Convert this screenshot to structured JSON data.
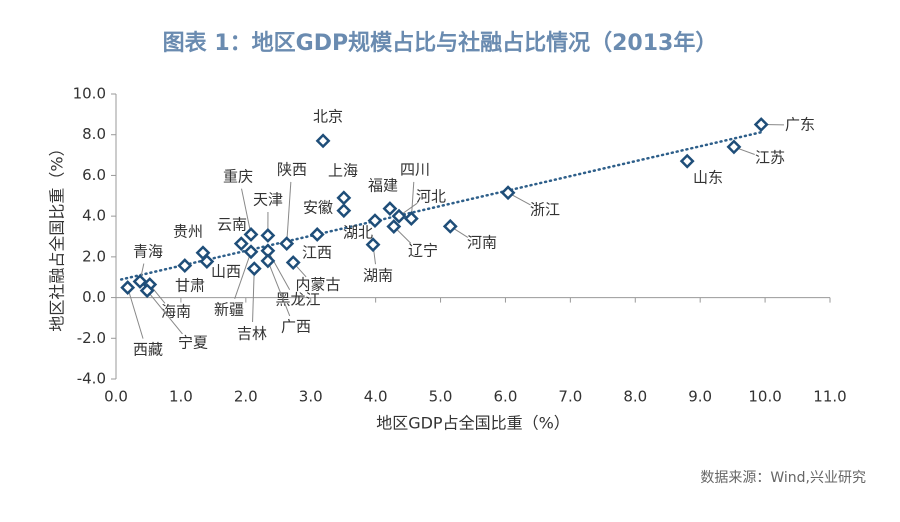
{
  "chart_data": {
    "type": "scatter",
    "title": "图表 1：地区GDP规模占比与社融占比情况（2013年）",
    "x_label": "地区GDP占全国比重（%）",
    "y_label": "地区社融占全国比重（%）",
    "source": "数据来源：Wind,兴业研究",
    "color": "#1f4e79",
    "trendline": true,
    "xlim": [
      0,
      11
    ],
    "ylim": [
      -4,
      10
    ],
    "xticks": [
      {
        "value": 0,
        "label": "0.0"
      },
      {
        "value": 1,
        "label": "1.0"
      },
      {
        "value": 2,
        "label": "2.0"
      },
      {
        "value": 3,
        "label": "3.0"
      },
      {
        "value": 4,
        "label": "4.0"
      },
      {
        "value": 5,
        "label": "5.0"
      },
      {
        "value": 6,
        "label": "6.0"
      },
      {
        "value": 7,
        "label": "7.0"
      },
      {
        "value": 8,
        "label": "8.0"
      },
      {
        "value": 9,
        "label": "9.0"
      },
      {
        "value": 10,
        "label": "10.0"
      },
      {
        "value": 11,
        "label": "11.0"
      }
    ],
    "yticks": [
      {
        "value": -4,
        "label": "-4.0"
      },
      {
        "value": -2,
        "label": "-2.0"
      },
      {
        "value": 0,
        "label": "0.0"
      },
      {
        "value": 2,
        "label": "2.0"
      },
      {
        "value": 4,
        "label": "4.0"
      },
      {
        "value": 6,
        "label": "6.0"
      },
      {
        "value": 8,
        "label": "8.0"
      },
      {
        "value": 10,
        "label": "10.0"
      }
    ],
    "point_labels": [
      "广东",
      "江苏",
      "山东",
      "浙江",
      "河南",
      "北京",
      "上海",
      "安徽",
      "四川",
      "福建",
      "河北",
      "辽宁",
      "湖北",
      "湖南",
      "江西",
      "陕西",
      "内蒙古",
      "天津",
      "重庆",
      "云南",
      "贵州",
      "山西",
      "新疆",
      "吉林",
      "黑龙江",
      "广西",
      "甘肃",
      "青海",
      "海南",
      "宁夏",
      "西藏"
    ],
    "x": [
      9.94,
      9.52,
      8.8,
      6.04,
      5.15,
      3.19,
      3.51,
      3.51,
      4.55,
      4.22,
      4.36,
      4.28,
      3.99,
      3.96,
      3.1,
      2.63,
      2.73,
      2.34,
      2.08,
      1.93,
      1.34,
      1.4,
      2.08,
      2.13,
      2.34,
      2.34,
      1.06,
      0.37,
      0.52,
      0.48,
      0.18
    ],
    "values": [
      8.5,
      7.4,
      6.7,
      5.15,
      3.5,
      7.7,
      4.9,
      4.27,
      3.88,
      4.37,
      4.0,
      3.49,
      3.78,
      2.6,
      3.1,
      2.65,
      1.72,
      3.05,
      3.1,
      2.65,
      2.2,
      1.77,
      2.25,
      1.42,
      2.3,
      1.8,
      1.57,
      0.79,
      0.64,
      0.34,
      0.49
    ]
  }
}
